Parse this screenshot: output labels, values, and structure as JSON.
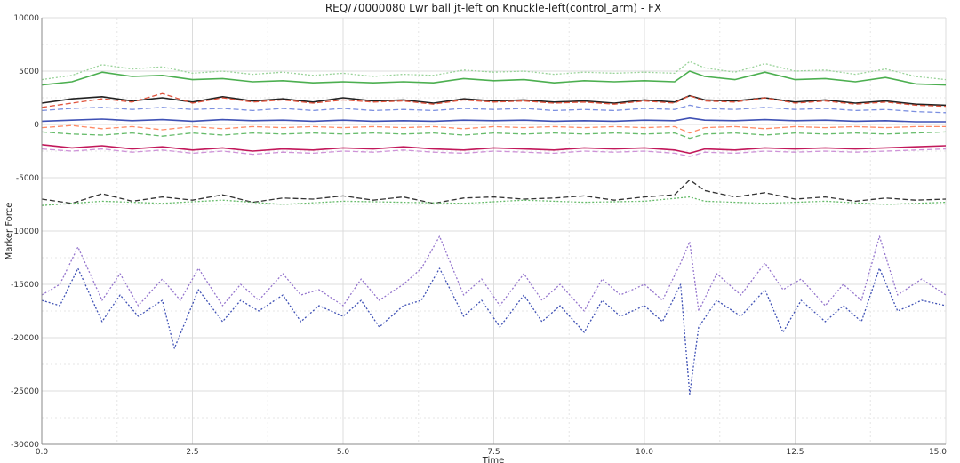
{
  "chart_data": {
    "type": "line",
    "title": "REQ/70000080 Lwr ball jt-left on Knuckle-left(control_arm) - FX",
    "xlabel": "Time",
    "ylabel": "Marker Force",
    "xlim": [
      0.0,
      15.0
    ],
    "ylim": [
      -30000,
      10000
    ],
    "x_ticks": [
      "0.0",
      "2.5",
      "5.0",
      "7.5",
      "10.0",
      "12.5",
      "15.0"
    ],
    "y_ticks": [
      "10000",
      "5000",
      "0",
      "-5000",
      "-10000",
      "-15000",
      "-20000",
      "-25000",
      "-30000"
    ],
    "grid": true,
    "legend": "none",
    "series": [
      {
        "color": "#9ad39a",
        "dash": "dotted",
        "x": [
          0,
          0.5,
          1.0,
          1.5,
          2.0,
          2.5,
          3.0,
          3.5,
          4.0,
          4.5,
          5.0,
          5.5,
          6.0,
          6.5,
          7.0,
          7.5,
          8.0,
          8.5,
          9.0,
          9.5,
          10.0,
          10.5,
          10.75,
          11.0,
          11.5,
          12.0,
          12.5,
          13.0,
          13.5,
          14.0,
          14.5,
          15.0
        ],
        "y": [
          4200,
          4600,
          5600,
          5200,
          5400,
          4800,
          5000,
          4700,
          4900,
          4600,
          4800,
          4500,
          4700,
          4600,
          5100,
          4900,
          5000,
          4700,
          4900,
          4800,
          4900,
          4800,
          5900,
          5300,
          4900,
          5700,
          5000,
          5100,
          4700,
          5200,
          4500,
          4200
        ]
      },
      {
        "color": "#4caf50",
        "dash": "solid",
        "x": [
          0,
          0.5,
          1.0,
          1.5,
          2.0,
          2.5,
          3.0,
          3.5,
          4.0,
          4.5,
          5.0,
          5.5,
          6.0,
          6.5,
          7.0,
          7.5,
          8.0,
          8.5,
          9.0,
          9.5,
          10.0,
          10.5,
          10.75,
          11.0,
          11.5,
          12.0,
          12.5,
          13.0,
          13.5,
          14.0,
          14.5,
          15.0
        ],
        "y": [
          3700,
          4000,
          4900,
          4500,
          4600,
          4200,
          4300,
          4000,
          4100,
          3900,
          4000,
          3900,
          4000,
          3900,
          4300,
          4100,
          4200,
          3900,
          4100,
          4000,
          4100,
          4000,
          5000,
          4500,
          4200,
          4900,
          4200,
          4300,
          4000,
          4400,
          3800,
          3700
        ]
      },
      {
        "color": "#222222",
        "dash": "solid",
        "x": [
          0,
          0.5,
          1.0,
          1.5,
          2.0,
          2.5,
          3.0,
          3.5,
          4.0,
          4.5,
          5.0,
          5.5,
          6.0,
          6.5,
          7.0,
          7.5,
          8.0,
          8.5,
          9.0,
          9.5,
          10.0,
          10.5,
          10.75,
          11.0,
          11.5,
          12.0,
          12.5,
          13.0,
          13.5,
          14.0,
          14.5,
          15.0
        ],
        "y": [
          2000,
          2400,
          2600,
          2200,
          2500,
          2100,
          2600,
          2200,
          2400,
          2100,
          2500,
          2200,
          2300,
          2000,
          2400,
          2200,
          2300,
          2100,
          2200,
          2000,
          2300,
          2100,
          2700,
          2300,
          2200,
          2500,
          2100,
          2300,
          2000,
          2200,
          1900,
          1800
        ]
      },
      {
        "color": "#e0533c",
        "dash": "dashed",
        "x": [
          0,
          0.5,
          1.0,
          1.5,
          2.0,
          2.5,
          3.0,
          3.5,
          4.0,
          4.5,
          5.0,
          5.5,
          6.0,
          6.5,
          7.0,
          7.5,
          8.0,
          8.5,
          9.0,
          9.5,
          10.0,
          10.5,
          10.75,
          11.0,
          11.5,
          12.0,
          12.5,
          13.0,
          13.5,
          14.0,
          14.5,
          15.0
        ],
        "y": [
          1600,
          2000,
          2400,
          2100,
          2900,
          2000,
          2500,
          2100,
          2300,
          2000,
          2300,
          2100,
          2200,
          1900,
          2300,
          2100,
          2200,
          2000,
          2100,
          1900,
          2200,
          2000,
          2700,
          2200,
          2100,
          2500,
          2000,
          2200,
          1900,
          2100,
          1800,
          1700
        ]
      },
      {
        "color": "#7b8fe0",
        "dash": "dashed",
        "x": [
          0,
          0.5,
          1.0,
          1.5,
          2.0,
          2.5,
          3.0,
          3.5,
          4.0,
          4.5,
          5.0,
          5.5,
          6.0,
          6.5,
          7.0,
          7.5,
          8.0,
          8.5,
          9.0,
          9.5,
          10.0,
          10.5,
          10.75,
          11.0,
          11.5,
          12.0,
          12.5,
          13.0,
          13.5,
          14.0,
          14.5,
          15.0
        ],
        "y": [
          1300,
          1500,
          1600,
          1400,
          1600,
          1400,
          1500,
          1300,
          1500,
          1300,
          1500,
          1300,
          1400,
          1300,
          1500,
          1400,
          1500,
          1300,
          1400,
          1300,
          1500,
          1400,
          1800,
          1500,
          1400,
          1600,
          1400,
          1500,
          1300,
          1400,
          1200,
          1100
        ]
      },
      {
        "color": "#3f51b5",
        "dash": "solid",
        "x": [
          0,
          0.5,
          1.0,
          1.5,
          2.0,
          2.5,
          3.0,
          3.5,
          4.0,
          4.5,
          5.0,
          5.5,
          6.0,
          6.5,
          7.0,
          7.5,
          8.0,
          8.5,
          9.0,
          9.5,
          10.0,
          10.5,
          10.75,
          11.0,
          11.5,
          12.0,
          12.5,
          13.0,
          13.5,
          14.0,
          14.5,
          15.0
        ],
        "y": [
          300,
          400,
          500,
          350,
          450,
          300,
          450,
          350,
          400,
          300,
          400,
          300,
          350,
          300,
          400,
          350,
          400,
          300,
          350,
          300,
          400,
          350,
          600,
          400,
          350,
          450,
          350,
          400,
          300,
          350,
          250,
          250
        ]
      },
      {
        "color": "#ff8a65",
        "dash": "dashed",
        "x": [
          0,
          0.5,
          1.0,
          1.5,
          2.0,
          2.5,
          3.0,
          3.5,
          4.0,
          4.5,
          5.0,
          5.5,
          6.0,
          6.5,
          7.0,
          7.5,
          8.0,
          8.5,
          9.0,
          9.5,
          10.0,
          10.5,
          10.75,
          11.0,
          11.5,
          12.0,
          12.5,
          13.0,
          13.5,
          14.0,
          14.5,
          15.0
        ],
        "y": [
          -300,
          -100,
          -400,
          -200,
          -500,
          -200,
          -400,
          -200,
          -300,
          -200,
          -300,
          -200,
          -300,
          -200,
          -400,
          -200,
          -300,
          -200,
          -300,
          -200,
          -300,
          -200,
          -800,
          -300,
          -200,
          -400,
          -200,
          -300,
          -200,
          -300,
          -200,
          -200
        ]
      },
      {
        "color": "#66bb6a",
        "dash": "dashed",
        "x": [
          0,
          0.5,
          1.0,
          1.5,
          2.0,
          2.5,
          3.0,
          3.5,
          4.0,
          4.5,
          5.0,
          5.5,
          6.0,
          6.5,
          7.0,
          7.5,
          8.0,
          8.5,
          9.0,
          9.5,
          10.0,
          10.5,
          10.75,
          11.0,
          11.5,
          12.0,
          12.5,
          13.0,
          13.5,
          14.0,
          14.5,
          15.0
        ],
        "y": [
          -700,
          -900,
          -1000,
          -800,
          -1100,
          -800,
          -1000,
          -800,
          -900,
          -800,
          -900,
          -800,
          -900,
          -800,
          -1000,
          -800,
          -900,
          -800,
          -900,
          -800,
          -900,
          -800,
          -1300,
          -900,
          -800,
          -1000,
          -800,
          -900,
          -800,
          -900,
          -800,
          -700
        ]
      },
      {
        "color": "#c2185b",
        "dash": "solid",
        "x": [
          0,
          0.5,
          1.0,
          1.5,
          2.0,
          2.5,
          3.0,
          3.5,
          4.0,
          4.5,
          5.0,
          5.5,
          6.0,
          6.5,
          7.0,
          7.5,
          8.0,
          8.5,
          9.0,
          9.5,
          10.0,
          10.5,
          10.75,
          11.0,
          11.5,
          12.0,
          12.5,
          13.0,
          13.5,
          14.0,
          14.5,
          15.0
        ],
        "y": [
          -1900,
          -2200,
          -2000,
          -2300,
          -2100,
          -2400,
          -2200,
          -2500,
          -2300,
          -2400,
          -2200,
          -2300,
          -2100,
          -2300,
          -2400,
          -2200,
          -2300,
          -2400,
          -2200,
          -2300,
          -2200,
          -2400,
          -2700,
          -2300,
          -2400,
          -2200,
          -2300,
          -2200,
          -2300,
          -2200,
          -2100,
          -2000
        ]
      },
      {
        "color": "#ce93d8",
        "dash": "dashed",
        "x": [
          0,
          0.5,
          1.0,
          1.5,
          2.0,
          2.5,
          3.0,
          3.5,
          4.0,
          4.5,
          5.0,
          5.5,
          6.0,
          6.5,
          7.0,
          7.5,
          8.0,
          8.5,
          9.0,
          9.5,
          10.0,
          10.5,
          10.75,
          11.0,
          11.5,
          12.0,
          12.5,
          13.0,
          13.5,
          14.0,
          14.5,
          15.0
        ],
        "y": [
          -2300,
          -2500,
          -2300,
          -2600,
          -2400,
          -2700,
          -2500,
          -2800,
          -2600,
          -2700,
          -2500,
          -2600,
          -2400,
          -2600,
          -2700,
          -2500,
          -2600,
          -2700,
          -2500,
          -2600,
          -2500,
          -2700,
          -3000,
          -2600,
          -2700,
          -2500,
          -2600,
          -2500,
          -2600,
          -2500,
          -2400,
          -2300
        ]
      },
      {
        "color": "#333333",
        "dash": "dashed",
        "x": [
          0,
          0.5,
          1.0,
          1.5,
          2.0,
          2.5,
          3.0,
          3.5,
          4.0,
          4.5,
          5.0,
          5.5,
          6.0,
          6.5,
          7.0,
          7.5,
          8.0,
          8.5,
          9.0,
          9.5,
          10.0,
          10.5,
          10.75,
          11.0,
          11.5,
          12.0,
          12.5,
          13.0,
          13.5,
          14.0,
          14.5,
          15.0
        ],
        "y": [
          -7000,
          -7400,
          -6500,
          -7200,
          -6800,
          -7100,
          -6600,
          -7300,
          -6900,
          -7000,
          -6700,
          -7100,
          -6800,
          -7400,
          -6900,
          -6800,
          -7000,
          -6900,
          -6700,
          -7100,
          -6800,
          -6600,
          -5200,
          -6200,
          -6800,
          -6400,
          -7000,
          -6800,
          -7200,
          -6900,
          -7100,
          -7000
        ]
      },
      {
        "color": "#66bb6a",
        "dash": "dotted",
        "x": [
          0,
          1.0,
          2.0,
          3.0,
          4.0,
          5.0,
          6.0,
          7.0,
          8.0,
          9.0,
          10.0,
          10.75,
          11.0,
          12.0,
          13.0,
          14.0,
          15.0
        ],
        "y": [
          -7600,
          -7200,
          -7400,
          -7100,
          -7500,
          -7200,
          -7300,
          -7400,
          -7100,
          -7300,
          -7200,
          -6800,
          -7200,
          -7400,
          -7200,
          -7500,
          -7300
        ]
      },
      {
        "color": "#9575cd",
        "dash": "dotted",
        "x": [
          0,
          0.3,
          0.6,
          1.0,
          1.3,
          1.6,
          2.0,
          2.3,
          2.6,
          3.0,
          3.3,
          3.6,
          4.0,
          4.3,
          4.6,
          5.0,
          5.3,
          5.6,
          6.0,
          6.3,
          6.6,
          7.0,
          7.3,
          7.6,
          8.0,
          8.3,
          8.6,
          9.0,
          9.3,
          9.6,
          10.0,
          10.3,
          10.6,
          10.75,
          10.9,
          11.2,
          11.6,
          12.0,
          12.3,
          12.6,
          13.0,
          13.3,
          13.6,
          13.9,
          14.2,
          14.6,
          15.0
        ],
        "y": [
          -16000,
          -15000,
          -11500,
          -16500,
          -14000,
          -17000,
          -14500,
          -16500,
          -13500,
          -17000,
          -15000,
          -16500,
          -14000,
          -16000,
          -15500,
          -17000,
          -14500,
          -16500,
          -15000,
          -13500,
          -10500,
          -16000,
          -14500,
          -17000,
          -14000,
          -16500,
          -15000,
          -17500,
          -14500,
          -16000,
          -15000,
          -16500,
          -13000,
          -11000,
          -17500,
          -14000,
          -16000,
          -13000,
          -15500,
          -14500,
          -17000,
          -15000,
          -16500,
          -10500,
          -16000,
          -14500,
          -16000
        ]
      },
      {
        "color": "#3f51b5",
        "dash": "dotted",
        "x": [
          0,
          0.3,
          0.6,
          1.0,
          1.3,
          1.6,
          2.0,
          2.2,
          2.6,
          3.0,
          3.3,
          3.6,
          4.0,
          4.3,
          4.6,
          5.0,
          5.3,
          5.6,
          6.0,
          6.3,
          6.6,
          7.0,
          7.3,
          7.6,
          8.0,
          8.3,
          8.6,
          9.0,
          9.3,
          9.6,
          10.0,
          10.3,
          10.6,
          10.75,
          10.9,
          11.2,
          11.6,
          12.0,
          12.3,
          12.6,
          13.0,
          13.3,
          13.6,
          13.9,
          14.2,
          14.6,
          15.0
        ],
        "y": [
          -16500,
          -17000,
          -13500,
          -18500,
          -16000,
          -18000,
          -16500,
          -21000,
          -15500,
          -18500,
          -16500,
          -17500,
          -16000,
          -18500,
          -17000,
          -18000,
          -16500,
          -19000,
          -17000,
          -16500,
          -13500,
          -18000,
          -16500,
          -19000,
          -16000,
          -18500,
          -17000,
          -19500,
          -16500,
          -18000,
          -17000,
          -18500,
          -15000,
          -25300,
          -19000,
          -16500,
          -18000,
          -15500,
          -19500,
          -16500,
          -18500,
          -17000,
          -18500,
          -13500,
          -17500,
          -16500,
          -17000
        ]
      }
    ]
  }
}
